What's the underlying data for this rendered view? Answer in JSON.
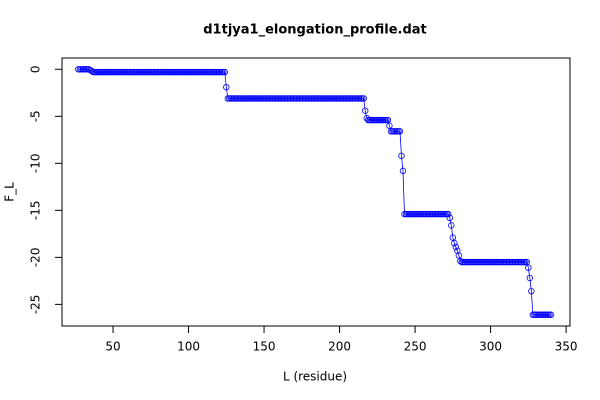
{
  "chart_data": {
    "type": "line",
    "title": "d1tjya1_elongation_profile.dat",
    "x_label": "L (residue)",
    "y_label": "F_L",
    "color": "#0000ff",
    "marker": "circle",
    "xlim": [
      16.2,
      352.6
    ],
    "ylim": [
      -27.3,
      1.2
    ],
    "xticks": [
      50,
      100,
      150,
      200,
      250,
      300,
      350
    ],
    "yticks": [
      0,
      -5,
      -10,
      -15,
      -20,
      -25
    ],
    "x": [
      27,
      28,
      29,
      30,
      31,
      32,
      33,
      34,
      35,
      36,
      37,
      38,
      39,
      40,
      41,
      42,
      43,
      44,
      45,
      46,
      47,
      48,
      49,
      50,
      51,
      52,
      53,
      54,
      55,
      56,
      57,
      58,
      59,
      60,
      61,
      62,
      63,
      64,
      65,
      66,
      67,
      68,
      69,
      70,
      71,
      72,
      73,
      74,
      75,
      76,
      77,
      78,
      79,
      80,
      81,
      82,
      83,
      84,
      85,
      86,
      87,
      88,
      89,
      90,
      91,
      92,
      93,
      94,
      95,
      96,
      97,
      98,
      99,
      100,
      101,
      102,
      103,
      104,
      105,
      106,
      107,
      108,
      109,
      110,
      111,
      112,
      113,
      114,
      115,
      116,
      117,
      118,
      119,
      120,
      121,
      122,
      123,
      124,
      125,
      126,
      127,
      128,
      129,
      130,
      131,
      132,
      133,
      134,
      135,
      136,
      137,
      138,
      139,
      140,
      141,
      142,
      143,
      144,
      145,
      146,
      147,
      148,
      149,
      150,
      151,
      152,
      153,
      154,
      155,
      156,
      157,
      158,
      159,
      160,
      161,
      162,
      163,
      164,
      165,
      166,
      167,
      168,
      169,
      170,
      171,
      172,
      173,
      174,
      175,
      176,
      177,
      178,
      179,
      180,
      181,
      182,
      183,
      184,
      185,
      186,
      187,
      188,
      189,
      190,
      191,
      192,
      193,
      194,
      195,
      196,
      197,
      198,
      199,
      200,
      201,
      202,
      203,
      204,
      205,
      206,
      207,
      208,
      209,
      210,
      211,
      212,
      213,
      214,
      215,
      216,
      217,
      218,
      219,
      220,
      221,
      222,
      223,
      224,
      225,
      226,
      227,
      228,
      229,
      230,
      231,
      232,
      233,
      234,
      235,
      236,
      237,
      238,
      239,
      240,
      241,
      242,
      243,
      244,
      245,
      246,
      247,
      248,
      249,
      250,
      251,
      252,
      253,
      254,
      255,
      256,
      257,
      258,
      259,
      260,
      261,
      262,
      263,
      264,
      265,
      266,
      267,
      268,
      269,
      270,
      271,
      272,
      273,
      274,
      275,
      276,
      277,
      278,
      279,
      280,
      281,
      282,
      283,
      284,
      285,
      286,
      287,
      288,
      289,
      290,
      291,
      292,
      293,
      294,
      295,
      296,
      297,
      298,
      299,
      300,
      301,
      302,
      303,
      304,
      305,
      306,
      307,
      308,
      309,
      310,
      311,
      312,
      313,
      314,
      315,
      316,
      317,
      318,
      319,
      320,
      321,
      322,
      323,
      324,
      325,
      326,
      327,
      328,
      329,
      330,
      331,
      332,
      333,
      334,
      335,
      336,
      337,
      338,
      339,
      340
    ],
    "values": [
      0,
      0,
      0,
      0,
      0,
      0,
      0,
      0,
      -0.1,
      -0.2,
      -0.3,
      -0.3,
      -0.3,
      -0.3,
      -0.3,
      -0.3,
      -0.3,
      -0.3,
      -0.3,
      -0.3,
      -0.3,
      -0.3,
      -0.3,
      -0.3,
      -0.3,
      -0.3,
      -0.3,
      -0.3,
      -0.3,
      -0.3,
      -0.3,
      -0.3,
      -0.3,
      -0.3,
      -0.3,
      -0.3,
      -0.3,
      -0.3,
      -0.3,
      -0.3,
      -0.3,
      -0.3,
      -0.3,
      -0.3,
      -0.3,
      -0.3,
      -0.3,
      -0.3,
      -0.3,
      -0.3,
      -0.3,
      -0.3,
      -0.3,
      -0.3,
      -0.3,
      -0.3,
      -0.3,
      -0.3,
      -0.3,
      -0.3,
      -0.3,
      -0.3,
      -0.3,
      -0.3,
      -0.3,
      -0.3,
      -0.3,
      -0.3,
      -0.3,
      -0.3,
      -0.3,
      -0.3,
      -0.3,
      -0.3,
      -0.3,
      -0.3,
      -0.3,
      -0.3,
      -0.3,
      -0.3,
      -0.3,
      -0.3,
      -0.3,
      -0.3,
      -0.3,
      -0.3,
      -0.3,
      -0.3,
      -0.3,
      -0.3,
      -0.3,
      -0.3,
      -0.3,
      -0.3,
      -0.3,
      -0.3,
      -0.3,
      -0.3,
      -1.9,
      -3.1,
      -3.1,
      -3.1,
      -3.1,
      -3.1,
      -3.1,
      -3.1,
      -3.1,
      -3.1,
      -3.1,
      -3.1,
      -3.1,
      -3.1,
      -3.1,
      -3.1,
      -3.1,
      -3.1,
      -3.1,
      -3.1,
      -3.1,
      -3.1,
      -3.1,
      -3.1,
      -3.1,
      -3.1,
      -3.1,
      -3.1,
      -3.1,
      -3.1,
      -3.1,
      -3.1,
      -3.1,
      -3.1,
      -3.1,
      -3.1,
      -3.1,
      -3.1,
      -3.1,
      -3.1,
      -3.1,
      -3.1,
      -3.1,
      -3.1,
      -3.1,
      -3.1,
      -3.1,
      -3.1,
      -3.1,
      -3.1,
      -3.1,
      -3.1,
      -3.1,
      -3.1,
      -3.1,
      -3.1,
      -3.1,
      -3.1,
      -3.1,
      -3.1,
      -3.1,
      -3.1,
      -3.1,
      -3.1,
      -3.1,
      -3.1,
      -3.1,
      -3.1,
      -3.1,
      -3.1,
      -3.1,
      -3.1,
      -3.1,
      -3.1,
      -3.1,
      -3.1,
      -3.1,
      -3.1,
      -3.1,
      -3.1,
      -3.1,
      -3.1,
      -3.1,
      -3.1,
      -3.1,
      -3.1,
      -3.1,
      -3.1,
      -3.1,
      -3.1,
      -3.1,
      -3.1,
      -4.4,
      -5.2,
      -5.4,
      -5.4,
      -5.4,
      -5.4,
      -5.4,
      -5.4,
      -5.4,
      -5.4,
      -5.4,
      -5.4,
      -5.4,
      -5.4,
      -5.4,
      -5.4,
      -6.0,
      -6.6,
      -6.6,
      -6.6,
      -6.6,
      -6.6,
      -6.6,
      -6.6,
      -9.2,
      -10.8,
      -15.4,
      -15.4,
      -15.4,
      -15.4,
      -15.4,
      -15.4,
      -15.4,
      -15.4,
      -15.4,
      -15.4,
      -15.4,
      -15.4,
      -15.4,
      -15.4,
      -15.4,
      -15.4,
      -15.4,
      -15.4,
      -15.4,
      -15.4,
      -15.4,
      -15.4,
      -15.4,
      -15.4,
      -15.4,
      -15.4,
      -15.4,
      -15.4,
      -15.4,
      -15.4,
      -15.8,
      -16.6,
      -17.9,
      -18.5,
      -18.9,
      -19.3,
      -19.8,
      -20.4,
      -20.5,
      -20.5,
      -20.5,
      -20.5,
      -20.5,
      -20.5,
      -20.5,
      -20.5,
      -20.5,
      -20.5,
      -20.5,
      -20.5,
      -20.5,
      -20.5,
      -20.5,
      -20.5,
      -20.5,
      -20.5,
      -20.5,
      -20.5,
      -20.5,
      -20.5,
      -20.5,
      -20.5,
      -20.5,
      -20.5,
      -20.5,
      -20.5,
      -20.5,
      -20.5,
      -20.5,
      -20.5,
      -20.5,
      -20.5,
      -20.5,
      -20.5,
      -20.5,
      -20.5,
      -20.5,
      -20.5,
      -20.5,
      -20.5,
      -20.5,
      -20.5,
      -21.1,
      -22.2,
      -23.6,
      -26.1,
      -26.1,
      -26.1,
      -26.1,
      -26.1,
      -26.1,
      -26.1,
      -26.1,
      -26.1,
      -26.1,
      -26.1,
      -26.1,
      -26.1
    ]
  }
}
